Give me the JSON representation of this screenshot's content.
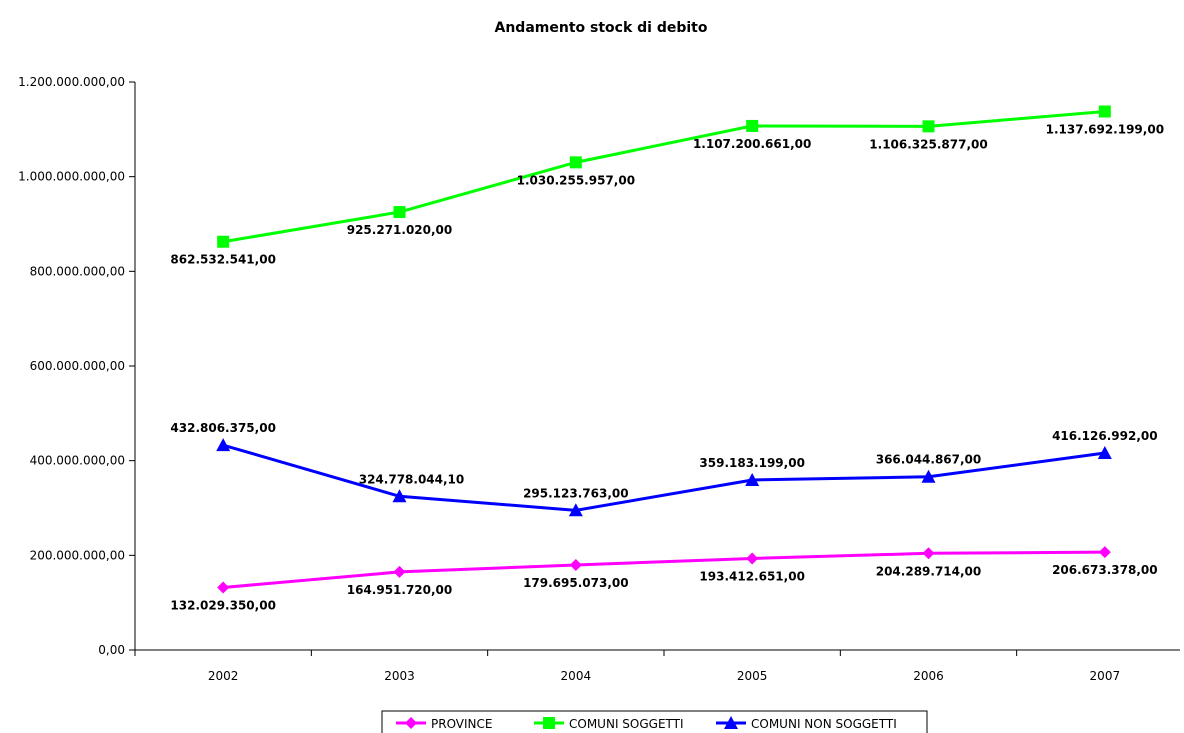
{
  "chart_data": {
    "type": "line",
    "title": "Andamento stock di debito",
    "xlabel": "",
    "ylabel": "",
    "categories": [
      "2002",
      "2003",
      "2004",
      "2005",
      "2006",
      "2007"
    ],
    "ylim": [
      0,
      1200000000
    ],
    "yticks": [
      {
        "value": 0,
        "label": "0,00"
      },
      {
        "value": 200000000,
        "label": "200.000.000,00"
      },
      {
        "value": 400000000,
        "label": "400.000.000,00"
      },
      {
        "value": 600000000,
        "label": "600.000.000,00"
      },
      {
        "value": 800000000,
        "label": "800.000.000,00"
      },
      {
        "value": 1000000000,
        "label": "1.000.000.000,00"
      },
      {
        "value": 1200000000,
        "label": "1.200.000.000,00"
      }
    ],
    "grid": false,
    "legend_position": "bottom",
    "series": [
      {
        "name": "PROVINCE",
        "color": "#ff00ff",
        "marker": "diamond",
        "values": [
          132029350.0,
          164951720.0,
          179695073.0,
          193412651.0,
          204289714.0,
          206673378.0
        ],
        "labels": [
          "132.029.350,00",
          "164.951.720,00",
          "179.695.073,00",
          "193.412.651,00",
          "204.289.714,00",
          "206.673.378,00"
        ],
        "label_position": "below"
      },
      {
        "name": "COMUNI SOGGETTI",
        "color": "#00ff00",
        "marker": "square",
        "values": [
          862532541.0,
          925271020.0,
          1030255957.0,
          1107200661.0,
          1106325877.0,
          1137692199.0
        ],
        "labels": [
          "862.532.541,00",
          "925.271.020,00",
          "1.030.255.957,00",
          "1.107.200.661,00",
          "1.106.325.877,00",
          "1.137.692.199,00"
        ],
        "label_position": "below"
      },
      {
        "name": "COMUNI NON SOGGETTI",
        "color": "#0000ff",
        "marker": "triangle",
        "values": [
          432806375.0,
          324778044.1,
          295123763.0,
          359183199.0,
          366044867.0,
          416126992.0
        ],
        "labels": [
          "432.806.375,00",
          "324.778.044,10",
          "295.123.763,00",
          "359.183.199,00",
          "366.044.867,00",
          "416.126.992,00"
        ],
        "label_position": "above"
      }
    ]
  }
}
